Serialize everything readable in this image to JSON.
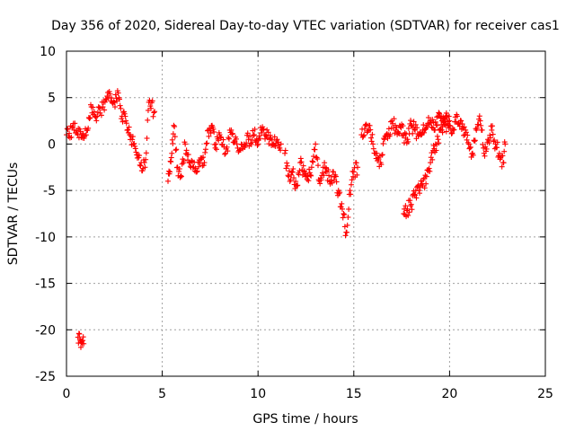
{
  "chart_data": {
    "type": "scatter",
    "title": "Day 356 of 2020, Sidereal Day-to-day VTEC variation (SDTVAR) for receiver cas1",
    "xlabel": "GPS time / hours",
    "ylabel": "SDTVAR / TECUs",
    "xlim": [
      0,
      25
    ],
    "ylim": [
      -25,
      10
    ],
    "xticks": [
      "0",
      "5",
      "10",
      "15",
      "20",
      "25"
    ],
    "yticks": [
      "10",
      "5",
      "0",
      "-5",
      "-10",
      "-15",
      "-20",
      "-25"
    ],
    "grid": true,
    "marker": "plus",
    "color": "#ff0000",
    "series": [
      {
        "name": "cas1",
        "segments": [
          {
            "x": [
              0.0,
              0.4,
              0.8,
              1.1,
              1.3,
              1.6,
              1.9,
              2.2,
              2.5,
              2.7,
              2.9,
              3.1,
              3.3,
              3.5,
              3.7,
              3.9,
              4.1,
              4.3,
              4.6
            ],
            "y": [
              1,
              1.5,
              1,
              1.5,
              4,
              3,
              4,
              5,
              4.5,
              5.5,
              3,
              2.5,
              1,
              0,
              -1.5,
              -2,
              -2.5,
              4.5,
              3.5
            ]
          },
          {
            "x": [
              5.3,
              5.4,
              5.5,
              5.6,
              5.8,
              6.0,
              6.2,
              6.4,
              6.6,
              6.8,
              7.0,
              7.2,
              7.4,
              7.6,
              7.8,
              8.0,
              8.3,
              8.6,
              8.9,
              9.2,
              9.5,
              9.8,
              10.0,
              10.2,
              10.4,
              10.6,
              10.8,
              11.0,
              11.2
            ],
            "y": [
              -4,
              -3,
              -1,
              2,
              -2.5,
              -3.5,
              0,
              -2,
              -2.5,
              -3,
              -1.5,
              -2,
              1.5,
              2,
              0,
              1,
              -1,
              1.5,
              0,
              -0.5,
              0.5,
              1,
              0,
              1.5,
              1,
              0.5,
              0,
              0.5,
              0
            ]
          },
          {
            "x": [
              11.4,
              11.6,
              11.8,
              12.0,
              12.2,
              12.4,
              12.6,
              12.8,
              13.0,
              13.2,
              13.4,
              13.6,
              13.8,
              14.0,
              14.2,
              14.4,
              14.6,
              14.8,
              15.0,
              15.2
            ],
            "y": [
              -1,
              -3.5,
              -3,
              -4.5,
              -2,
              -3,
              -3.5,
              -2.5,
              0,
              -4,
              -2.5,
              -3,
              -4,
              -3.5,
              -5,
              -7,
              -9.5,
              -5,
              -3,
              -2.5
            ]
          },
          {
            "x": [
              15.4,
              15.6,
              15.8,
              16.0,
              16.2,
              16.4,
              16.6,
              16.8,
              17.0,
              17.2,
              17.4,
              17.6,
              17.8,
              18.0,
              18.2,
              18.4,
              18.6,
              18.8,
              19.0,
              19.2,
              19.4,
              19.6,
              19.8,
              20.0,
              20.2,
              20.4,
              20.6,
              20.8,
              21.0,
              21.2,
              21.4,
              21.6,
              21.8,
              22.0,
              22.2,
              22.4,
              22.6,
              22.8,
              22.9
            ],
            "y": [
              1,
              2,
              1.5,
              0,
              -1,
              -2,
              0.5,
              1,
              2.5,
              1.5,
              2,
              1,
              0.5,
              2,
              1.5,
              1,
              1.5,
              2,
              2.5,
              1.5,
              3,
              2.5,
              3,
              2,
              1.5,
              3,
              2.5,
              1,
              0,
              -1,
              1.5,
              2.5,
              -1,
              0.5,
              1.5,
              0,
              -1,
              -2,
              0
            ]
          },
          {
            "x": [
              17.6,
              17.8,
              18.0,
              18.2,
              18.4,
              18.6,
              18.8,
              19.0,
              19.2,
              19.4,
              19.6,
              19.8,
              20.0
            ],
            "y": [
              -7.5,
              -7,
              -6.5,
              -5.5,
              -5,
              -4.5,
              -3.5,
              -2,
              -0.5,
              0.5,
              1.5,
              2,
              2.5
            ]
          },
          {
            "x": [
              0.6,
              0.7,
              0.8,
              0.9
            ],
            "y": [
              -20.8,
              -21,
              -21.2,
              -21.5
            ]
          }
        ]
      }
    ]
  }
}
